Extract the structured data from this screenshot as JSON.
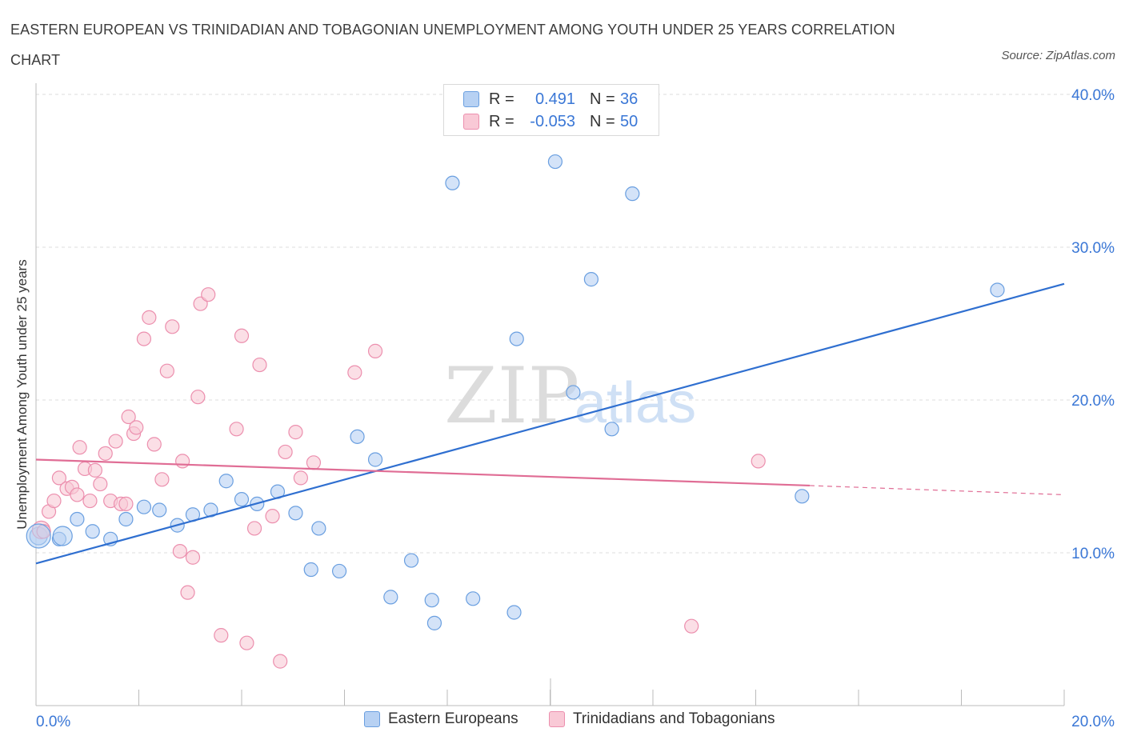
{
  "title": "EASTERN EUROPEAN VS TRINIDADIAN AND TOBAGONIAN UNEMPLOYMENT AMONG YOUTH UNDER 25 YEARS CORRELATION CHART",
  "source": "Source: ZipAtlas.com",
  "watermark": {
    "zip": "ZIP",
    "atlas": "atlas"
  },
  "legend": {
    "rows": [
      {
        "r_label": "R =",
        "r_value": "0.491",
        "n_label": "N =",
        "n_value": "36",
        "color": "#a9c8f0",
        "border": "#6a9fe0"
      },
      {
        "r_label": "R =",
        "r_value": "-0.053",
        "n_label": "N =",
        "n_value": "50",
        "color": "#f7c0d0",
        "border": "#ec8fae"
      }
    ]
  },
  "bottom_legend": {
    "eastern": "Eastern Europeans",
    "trinidad": "Trinidadians and Tobagonians"
  },
  "chart_data": {
    "type": "scatter",
    "title": "EASTERN EUROPEAN VS TRINIDADIAN AND TOBAGONIAN UNEMPLOYMENT AMONG YOUTH UNDER 25 YEARS CORRELATION CHART",
    "xlabel": "",
    "ylabel": "Unemployment Among Youth under 25 years",
    "xlim": [
      0,
      20
    ],
    "ylim": [
      0,
      40
    ],
    "x_tick_labels": [
      {
        "value": 0,
        "label": "0.0%"
      },
      {
        "value": 20,
        "label": "20.0%"
      }
    ],
    "y_tick_labels": [
      {
        "value": 10,
        "label": "10.0%"
      },
      {
        "value": 20,
        "label": "20.0%"
      },
      {
        "value": 30,
        "label": "30.0%"
      },
      {
        "value": 40,
        "label": "40.0%"
      }
    ],
    "grid": true,
    "legend_position": "top-center",
    "series": [
      {
        "name": "Eastern Europeans",
        "color": "#6a9fe0",
        "fill": "#b7d1f3",
        "points": [
          [
            0.05,
            11.1
          ],
          [
            0.45,
            10.9
          ],
          [
            0.8,
            12.2
          ],
          [
            1.1,
            11.4
          ],
          [
            1.45,
            10.9
          ],
          [
            1.75,
            12.2
          ],
          [
            2.1,
            13.0
          ],
          [
            2.4,
            12.8
          ],
          [
            2.75,
            11.8
          ],
          [
            3.05,
            12.5
          ],
          [
            3.4,
            12.8
          ],
          [
            3.7,
            14.7
          ],
          [
            4.0,
            13.5
          ],
          [
            4.3,
            13.2
          ],
          [
            4.7,
            14.0
          ],
          [
            5.05,
            12.6
          ],
          [
            5.5,
            11.6
          ],
          [
            5.35,
            8.9
          ],
          [
            5.9,
            8.8
          ],
          [
            6.25,
            17.6
          ],
          [
            6.6,
            16.1
          ],
          [
            6.9,
            7.1
          ],
          [
            7.3,
            9.5
          ],
          [
            7.7,
            6.9
          ],
          [
            7.75,
            5.4
          ],
          [
            8.1,
            34.2
          ],
          [
            8.5,
            7.0
          ],
          [
            9.3,
            6.1
          ],
          [
            9.35,
            24.0
          ],
          [
            10.1,
            35.6
          ],
          [
            10.45,
            20.5
          ],
          [
            10.8,
            27.9
          ],
          [
            11.2,
            18.1
          ],
          [
            11.6,
            33.5
          ],
          [
            14.9,
            13.7
          ],
          [
            18.7,
            27.2
          ]
        ],
        "trend": {
          "x": [
            0,
            20
          ],
          "y": [
            9.3,
            27.6
          ]
        }
      },
      {
        "name": "Trinidadians and Tobagonians",
        "color": "#ec8fae",
        "fill": "#f9c9d6",
        "points": [
          [
            0.1,
            11.5
          ],
          [
            0.25,
            12.7
          ],
          [
            0.35,
            13.4
          ],
          [
            0.45,
            14.9
          ],
          [
            0.6,
            14.2
          ],
          [
            0.7,
            14.3
          ],
          [
            0.8,
            13.8
          ],
          [
            0.85,
            16.9
          ],
          [
            0.95,
            15.5
          ],
          [
            1.05,
            13.4
          ],
          [
            1.15,
            15.4
          ],
          [
            1.25,
            14.5
          ],
          [
            1.35,
            16.5
          ],
          [
            1.45,
            13.4
          ],
          [
            1.55,
            17.3
          ],
          [
            1.65,
            13.2
          ],
          [
            1.75,
            13.2
          ],
          [
            1.8,
            18.9
          ],
          [
            1.9,
            17.8
          ],
          [
            1.95,
            18.2
          ],
          [
            2.1,
            24.0
          ],
          [
            2.2,
            25.4
          ],
          [
            2.3,
            17.1
          ],
          [
            2.45,
            14.8
          ],
          [
            2.55,
            21.9
          ],
          [
            2.65,
            24.8
          ],
          [
            2.8,
            10.1
          ],
          [
            2.85,
            16.0
          ],
          [
            2.95,
            7.4
          ],
          [
            3.05,
            9.7
          ],
          [
            3.15,
            20.2
          ],
          [
            3.2,
            26.3
          ],
          [
            3.35,
            26.9
          ],
          [
            3.6,
            4.6
          ],
          [
            3.9,
            18.1
          ],
          [
            4.0,
            24.2
          ],
          [
            4.1,
            4.1
          ],
          [
            4.25,
            11.6
          ],
          [
            4.35,
            22.3
          ],
          [
            4.6,
            12.4
          ],
          [
            4.75,
            2.9
          ],
          [
            4.85,
            16.6
          ],
          [
            5.05,
            17.9
          ],
          [
            5.15,
            14.9
          ],
          [
            5.4,
            15.9
          ],
          [
            6.2,
            21.8
          ],
          [
            6.6,
            23.2
          ],
          [
            12.75,
            5.2
          ],
          [
            14.05,
            16.0
          ],
          [
            0.15,
            11.4
          ]
        ],
        "trend": {
          "x": [
            0,
            15.05
          ],
          "y": [
            16.1,
            14.4
          ],
          "dashed_x": [
            15.05,
            20
          ],
          "dashed_y": [
            14.4,
            13.8
          ]
        }
      }
    ]
  }
}
